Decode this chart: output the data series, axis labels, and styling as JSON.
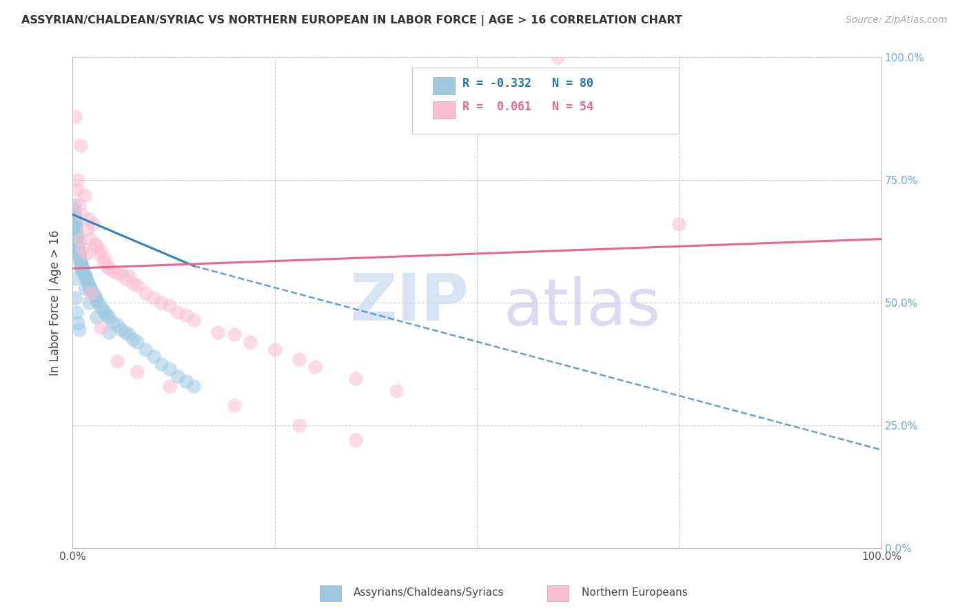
{
  "title": "ASSYRIAN/CHALDEAN/SYRIAC VS NORTHERN EUROPEAN IN LABOR FORCE | AGE > 16 CORRELATION CHART",
  "source": "Source: ZipAtlas.com",
  "ylabel": "In Labor Force | Age > 16",
  "legend_blue_label": "Assyrians/Chaldeans/Syriacs",
  "legend_pink_label": "Northern Europeans",
  "R_blue": -0.332,
  "N_blue": 80,
  "R_pink": 0.061,
  "N_pink": 54,
  "blue_color": "#9ecae1",
  "pink_color": "#fcbfd2",
  "blue_line_color": "#3182bd",
  "pink_line_color": "#e6678a",
  "bg_color": "#ffffff",
  "grid_color": "#cccccc",
  "blue_scatter_x": [
    0.15,
    0.18,
    0.22,
    0.25,
    0.28,
    0.3,
    0.32,
    0.35,
    0.38,
    0.4,
    0.42,
    0.45,
    0.48,
    0.5,
    0.52,
    0.55,
    0.58,
    0.6,
    0.62,
    0.65,
    0.68,
    0.7,
    0.72,
    0.75,
    0.78,
    0.8,
    0.85,
    0.9,
    0.95,
    1.0,
    1.05,
    1.1,
    1.15,
    1.2,
    1.25,
    1.3,
    1.4,
    1.5,
    1.6,
    1.7,
    1.8,
    1.9,
    2.0,
    2.1,
    2.2,
    2.3,
    2.5,
    2.7,
    2.9,
    3.0,
    3.2,
    3.5,
    3.8,
    4.0,
    4.2,
    4.5,
    5.0,
    5.5,
    6.0,
    6.5,
    7.0,
    7.5,
    8.0,
    9.0,
    10.0,
    11.0,
    12.0,
    13.0,
    14.0,
    15.0,
    0.2,
    0.35,
    0.5,
    0.65,
    0.8,
    1.0,
    1.5,
    2.0,
    3.0,
    4.5
  ],
  "blue_scatter_y": [
    67.0,
    68.5,
    70.0,
    69.0,
    68.0,
    67.5,
    67.0,
    66.5,
    66.0,
    65.5,
    65.0,
    64.5,
    64.0,
    63.5,
    63.0,
    63.0,
    62.5,
    62.0,
    62.0,
    61.5,
    61.0,
    61.0,
    60.5,
    60.5,
    60.0,
    60.0,
    59.5,
    59.0,
    58.5,
    58.5,
    58.0,
    57.5,
    57.5,
    57.0,
    56.5,
    56.5,
    56.0,
    55.5,
    55.5,
    55.0,
    54.5,
    54.0,
    53.5,
    53.0,
    53.0,
    52.5,
    52.0,
    51.5,
    51.0,
    50.5,
    50.0,
    49.0,
    48.5,
    48.0,
    47.5,
    47.0,
    46.0,
    45.5,
    44.5,
    44.0,
    43.5,
    42.5,
    42.0,
    40.5,
    39.0,
    37.5,
    36.5,
    35.0,
    34.0,
    33.0,
    55.0,
    51.0,
    48.0,
    46.0,
    44.5,
    57.0,
    53.0,
    50.0,
    47.0,
    44.0
  ],
  "pink_scatter_x": [
    0.5,
    0.8,
    1.0,
    1.2,
    1.5,
    1.8,
    2.0,
    2.2,
    2.5,
    2.8,
    3.0,
    3.2,
    3.5,
    3.8,
    4.0,
    4.2,
    4.5,
    5.0,
    5.5,
    6.0,
    6.5,
    7.0,
    7.5,
    8.0,
    9.0,
    10.0,
    11.0,
    12.0,
    13.0,
    14.0,
    15.0,
    18.0,
    20.0,
    22.0,
    25.0,
    28.0,
    30.0,
    35.0,
    40.0,
    0.3,
    0.6,
    0.9,
    1.3,
    1.7,
    2.3,
    3.5,
    5.5,
    8.0,
    12.0,
    20.0,
    28.0,
    35.0,
    60.0,
    75.0
  ],
  "pink_scatter_y": [
    73.0,
    70.0,
    82.0,
    68.0,
    72.0,
    65.0,
    67.0,
    63.0,
    66.0,
    62.0,
    61.5,
    60.0,
    60.5,
    58.5,
    59.0,
    57.5,
    57.0,
    56.5,
    56.0,
    56.0,
    55.0,
    55.5,
    54.0,
    53.5,
    52.0,
    51.0,
    50.0,
    49.5,
    48.0,
    47.5,
    46.5,
    44.0,
    43.5,
    42.0,
    40.5,
    38.5,
    37.0,
    34.5,
    32.0,
    88.0,
    75.0,
    63.0,
    61.0,
    60.0,
    52.0,
    45.0,
    38.0,
    36.0,
    33.0,
    29.0,
    25.0,
    22.0,
    100.0,
    66.0
  ],
  "blue_trend": [
    0,
    15,
    68.0,
    57.5
  ],
  "blue_dash_trend": [
    15,
    100,
    57.5,
    20.0
  ],
  "pink_trend": [
    0,
    100,
    57.0,
    63.0
  ],
  "watermark1_text": "ZIP",
  "watermark2_text": "atlas",
  "watermark1_color": "#c5d8ef",
  "watermark2_color": "#c5c0e8"
}
